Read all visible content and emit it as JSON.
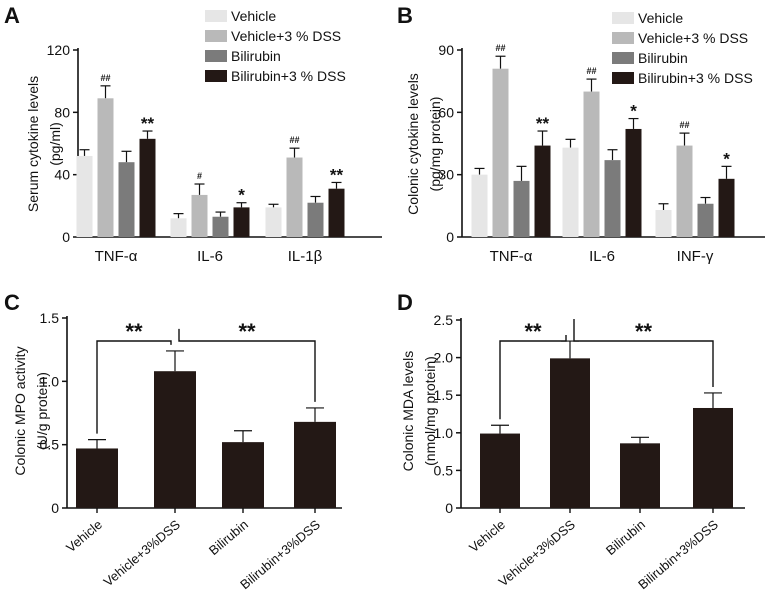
{
  "colors": {
    "vehicle": "#e6e6e6",
    "vehicle_dss": "#b9b9b9",
    "bilirubin": "#7b7b7b",
    "bilirubin_dss": "#231815",
    "axis": "#111111"
  },
  "chart_data": [
    {
      "panel": "A",
      "type": "bar",
      "ylabel_lines": [
        "Serum cytokine levels",
        "(pg/ml)"
      ],
      "ylim": [
        0,
        120
      ],
      "yticks": [
        0,
        40,
        80,
        120
      ],
      "categories": [
        "TNF-α",
        "IL-6",
        "IL-1β"
      ],
      "legend": [
        "Vehicle",
        "Vehicle+3 % DSS",
        "Bilirubin",
        "Bilirubin+3 % DSS"
      ],
      "series": [
        {
          "name": "Vehicle",
          "values": [
            52,
            12,
            19
          ],
          "errors": [
            4,
            3,
            2
          ],
          "marks": [
            "",
            "",
            ""
          ]
        },
        {
          "name": "Vehicle+3 % DSS",
          "values": [
            89,
            27,
            51
          ],
          "errors": [
            8,
            7,
            6
          ],
          "marks": [
            "##",
            "#",
            "##"
          ]
        },
        {
          "name": "Bilirubin",
          "values": [
            48,
            13,
            22
          ],
          "errors": [
            7,
            3,
            4
          ],
          "marks": [
            "",
            "",
            ""
          ]
        },
        {
          "name": "Bilirubin+3 % DSS",
          "values": [
            63,
            19,
            31
          ],
          "errors": [
            5,
            3,
            4
          ],
          "marks": [
            "**",
            "*",
            "**"
          ]
        }
      ]
    },
    {
      "panel": "B",
      "type": "bar",
      "ylabel_lines": [
        "Colonic cytokine levels",
        "(pg/mg protein)"
      ],
      "ylim": [
        0,
        90
      ],
      "yticks": [
        0,
        30,
        60,
        90
      ],
      "categories": [
        "TNF-α",
        "IL-6",
        "INF-γ"
      ],
      "legend": [
        "Vehicle",
        "Vehicle+3 % DSS",
        "Bilirubin",
        "Bilirubin+3 % DSS"
      ],
      "series": [
        {
          "name": "Vehicle",
          "values": [
            30,
            43,
            13
          ],
          "errors": [
            3,
            4,
            3
          ],
          "marks": [
            "",
            "",
            ""
          ]
        },
        {
          "name": "Vehicle+3 % DSS",
          "values": [
            81,
            70,
            44
          ],
          "errors": [
            6,
            6,
            6
          ],
          "marks": [
            "##",
            "##",
            "##"
          ]
        },
        {
          "name": "Bilirubin",
          "values": [
            27,
            37,
            16
          ],
          "errors": [
            7,
            5,
            3
          ],
          "marks": [
            "",
            "",
            ""
          ]
        },
        {
          "name": "Bilirubin+3 % DSS",
          "values": [
            44,
            52,
            28
          ],
          "errors": [
            7,
            5,
            6
          ],
          "marks": [
            "**",
            "*",
            "*"
          ]
        }
      ]
    },
    {
      "panel": "C",
      "type": "bar",
      "ylabel_lines": [
        "Colonic MPO activity",
        "(U/g protein)"
      ],
      "ylim": [
        0,
        1.5
      ],
      "yticks": [
        0,
        0.5,
        1.0,
        1.5
      ],
      "ytick_labels": [
        "0",
        "0.5",
        "1.0",
        "1.5"
      ],
      "categories": [
        "Vehicle",
        "Vehicle+3%DSS",
        "Bilirubin",
        "Bilirubin+3%DSS"
      ],
      "values": [
        0.47,
        1.08,
        0.52,
        0.68
      ],
      "errors": [
        0.07,
        0.16,
        0.09,
        0.11
      ],
      "brackets": [
        {
          "from": 0,
          "to": 1,
          "label": "**"
        },
        {
          "from": 1,
          "to": 3,
          "label": "**"
        }
      ]
    },
    {
      "panel": "D",
      "type": "bar",
      "ylabel_lines": [
        "Colonic MDA levels",
        "(nmol/mg protein)"
      ],
      "ylim": [
        0,
        2.5
      ],
      "yticks": [
        0,
        0.5,
        1.0,
        1.5,
        2.0,
        2.5
      ],
      "ytick_labels": [
        "0",
        "0.5",
        "1.0",
        "1.5",
        "2.0",
        "2.5"
      ],
      "categories": [
        "Vehicle",
        "Vehicle+3%DSS",
        "Bilirubin",
        "Bilirubin+3%DSS"
      ],
      "values": [
        0.99,
        1.99,
        0.86,
        1.33
      ],
      "errors": [
        0.11,
        0.23,
        0.08,
        0.2
      ],
      "brackets": [
        {
          "from": 0,
          "to": 1,
          "label": "**"
        },
        {
          "from": 1,
          "to": 3,
          "label": "**"
        }
      ]
    }
  ]
}
